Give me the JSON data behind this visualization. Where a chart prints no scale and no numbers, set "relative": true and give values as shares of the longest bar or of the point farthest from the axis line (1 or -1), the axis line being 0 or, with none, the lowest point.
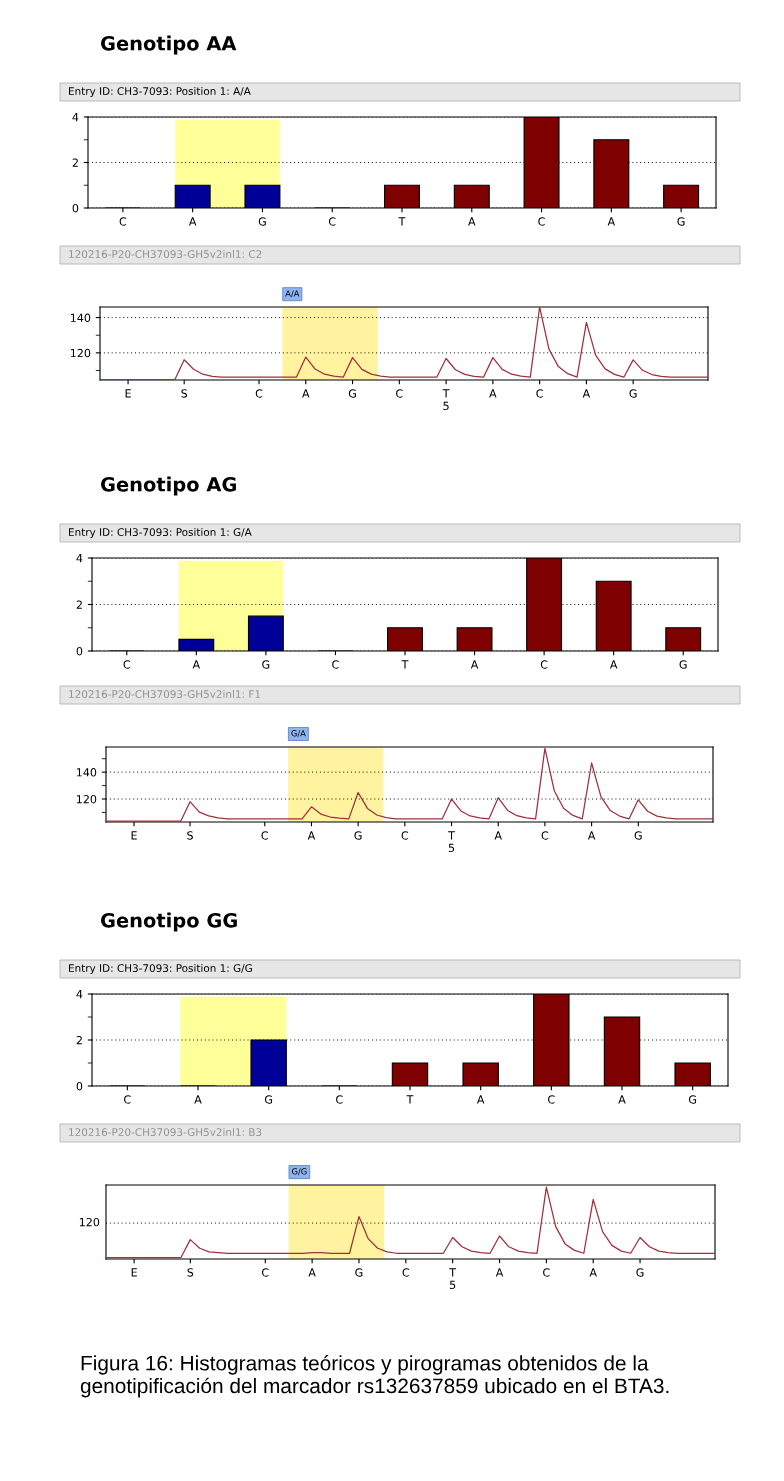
{
  "chart_data": [
    {
      "type": "bar",
      "title": "Genotipo AA",
      "subtitle": "Entry ID: CH3-7093: Position 1: A/A",
      "categories": [
        "C",
        "A",
        "G",
        "C",
        "T",
        "A",
        "C",
        "A",
        "G"
      ],
      "values": [
        0,
        1,
        1,
        0,
        1,
        1,
        4,
        3,
        1
      ],
      "colors": [
        "#7f0000",
        "#000099",
        "#000099",
        "#7f0000",
        "#7f0000",
        "#7f0000",
        "#7f0000",
        "#7f0000",
        "#7f0000"
      ],
      "ylim": [
        0,
        4
      ],
      "yticks": [
        0,
        {
          "value": 1,
          "label": null
        },
        2,
        {
          "value": 3,
          "label": null
        },
        4
      ],
      "grid": "y"
    },
    {
      "type": "line",
      "title": "120216-P20-CH37093-GH5v2inl1: C2",
      "color": "#a0303a",
      "ylim": [
        104.6,
        146
      ],
      "yticks": [
        {
          "value": 110,
          "label": null
        },
        120,
        {
          "value": 130,
          "label": null
        },
        140
      ],
      "grid": "y",
      "annotations": [
        "A/A"
      ],
      "categories": [
        null,
        null,
        null,
        "E",
        null,
        null,
        null,
        null,
        null,
        "S",
        null,
        null,
        null,
        null,
        null,
        null,
        null,
        "C",
        null,
        null,
        null,
        null,
        "A",
        null,
        null,
        null,
        null,
        "G",
        null,
        null,
        null,
        null,
        "C",
        null,
        null,
        null,
        null,
        "T\n5",
        null,
        null,
        null,
        null,
        "A",
        null,
        null,
        null,
        null,
        "C",
        null,
        null,
        null,
        null,
        "A",
        null,
        null,
        null,
        null,
        "G",
        null,
        null,
        null,
        null,
        null,
        null,
        null,
        null
      ],
      "values": [
        104.8,
        104.8,
        104.8,
        104.8,
        104.8,
        104.8,
        104.8,
        104.8,
        104.8,
        116.1,
        110.7,
        107.9,
        106.7,
        106.2,
        106.2,
        106.2,
        106.2,
        106.2,
        106.2,
        106.2,
        106.2,
        106.2,
        117.6,
        110.8,
        107.9,
        106.8,
        106.2,
        117.3,
        110.6,
        107.9,
        106.8,
        106.2,
        106.2,
        106.2,
        106.2,
        106.2,
        106.2,
        116.8,
        110.4,
        107.8,
        106.7,
        106.2,
        117.3,
        110.6,
        107.9,
        106.8,
        106.2,
        146,
        122.1,
        112.2,
        108.2,
        106.2,
        137.3,
        118.6,
        110.9,
        107.8,
        106.2,
        116,
        110.1,
        107.7,
        106.7,
        106.2,
        106.2,
        106.2,
        106.2,
        106.2
      ]
    },
    {
      "type": "bar",
      "title": "Genotipo AG",
      "subtitle": "Entry ID: CH3-7093: Position 1: G/A",
      "categories": [
        "C",
        "A",
        "G",
        "C",
        "T",
        "A",
        "C",
        "A",
        "G"
      ],
      "values": [
        0,
        0.5,
        1.5,
        0,
        1,
        1,
        4,
        3,
        1
      ],
      "colors": [
        "#7f0000",
        "#000099",
        "#000099",
        "#7f0000",
        "#7f0000",
        "#7f0000",
        "#7f0000",
        "#7f0000",
        "#7f0000"
      ],
      "ylim": [
        0,
        4
      ],
      "yticks": [
        0,
        {
          "value": 1,
          "label": null
        },
        2,
        {
          "value": 3,
          "label": null
        },
        4
      ],
      "grid": "y"
    },
    {
      "type": "line",
      "title": "120216-P20-CH37093-GH5v2inl1: F1",
      "color": "#a0303a",
      "ylim": [
        102.9,
        158.7
      ],
      "yticks": [
        {
          "value": 110,
          "label": null
        },
        120,
        {
          "value": 130,
          "label": null
        },
        140,
        {
          "value": 150,
          "label": null
        }
      ],
      "grid": "y",
      "annotations": [
        "G/A"
      ],
      "categories": [
        null,
        null,
        null,
        "E",
        null,
        null,
        null,
        null,
        null,
        "S",
        null,
        null,
        null,
        null,
        null,
        null,
        null,
        "C",
        null,
        null,
        null,
        null,
        "A",
        null,
        null,
        null,
        null,
        "G",
        null,
        null,
        null,
        null,
        "C",
        null,
        null,
        null,
        null,
        "T\n5",
        null,
        null,
        null,
        null,
        "A",
        null,
        null,
        null,
        null,
        "C",
        null,
        null,
        null,
        null,
        "A",
        null,
        null,
        null,
        null,
        "G",
        null,
        null,
        null,
        null,
        null,
        null,
        null,
        null
      ],
      "values": [
        103.5,
        103.5,
        103.5,
        103.5,
        103.5,
        103.5,
        103.5,
        103.5,
        103.5,
        118,
        110.2,
        107.4,
        105.9,
        105.2,
        105.2,
        105.2,
        105.2,
        105.2,
        105.2,
        105.2,
        105.2,
        105.2,
        114.2,
        108.8,
        106.6,
        105.7,
        105.2,
        124.8,
        113,
        108.1,
        106.2,
        105.2,
        105.2,
        105.2,
        105.2,
        105.2,
        105.2,
        120,
        111.1,
        107.4,
        105.9,
        105.2,
        121,
        111.5,
        107.6,
        106,
        105.2,
        157.7,
        126.2,
        113.1,
        107.8,
        105.2,
        146.8,
        121.8,
        111.4,
        107.3,
        105.2,
        119.4,
        110.9,
        107.3,
        105.9,
        105.2,
        105.2,
        105.2,
        105.2,
        105.2
      ]
    },
    {
      "type": "bar",
      "title": "Genotipo GG",
      "subtitle": "Entry ID: CH3-7093: Position 1: G/G",
      "categories": [
        "C",
        "A",
        "G",
        "C",
        "T",
        "A",
        "C",
        "A",
        "G"
      ],
      "values": [
        0,
        0,
        2,
        0,
        1,
        1,
        4,
        3,
        1
      ],
      "colors": [
        "#7f0000",
        "#000099",
        "#000099",
        "#7f0000",
        "#7f0000",
        "#7f0000",
        "#7f0000",
        "#7f0000",
        "#7f0000"
      ],
      "ylim": [
        0,
        4
      ],
      "yticks": [
        0,
        {
          "value": 1,
          "label": null
        },
        2,
        {
          "value": 3,
          "label": null
        },
        4
      ],
      "grid": "y"
    },
    {
      "type": "line",
      "title": "120216-P20-CH37093-GH5v2inl1: B3",
      "color": "#a0303a",
      "relative": true,
      "annotations": [
        "G/G",
        "120",
        "Figura 16: Histogramas teóricos y pirogramas obtenidos de la genotipificación del marcador rs132637859 ubicado en el BTA3."
      ],
      "ref_lines": [
        {
          "axis": "y",
          "value": 0.5,
          "line_style": "dotted"
        }
      ],
      "categories": [
        null,
        null,
        null,
        "E",
        null,
        null,
        null,
        null,
        null,
        "S",
        null,
        null,
        null,
        null,
        null,
        null,
        null,
        "C",
        null,
        null,
        null,
        null,
        "A",
        null,
        null,
        null,
        null,
        "G",
        null,
        null,
        null,
        null,
        "C",
        null,
        null,
        null,
        null,
        "T\n5",
        null,
        null,
        null,
        null,
        "A",
        null,
        null,
        null,
        null,
        "C",
        null,
        null,
        null,
        null,
        "A",
        null,
        null,
        null,
        null,
        "G",
        null,
        null,
        null,
        null,
        null,
        null,
        null,
        null
      ],
      "values": [
        0.02,
        0.02,
        0.02,
        0.02,
        0.02,
        0.02,
        0.02,
        0.02,
        0.02,
        0.27,
        0.15,
        0.1,
        0.09,
        0.08,
        0.08,
        0.08,
        0.08,
        0.08,
        0.08,
        0.08,
        0.08,
        0.08,
        0.09,
        0.09,
        0.08,
        0.08,
        0.08,
        0.59,
        0.28,
        0.15,
        0.1,
        0.08,
        0.08,
        0.08,
        0.08,
        0.08,
        0.08,
        0.3,
        0.17,
        0.11,
        0.09,
        0.08,
        0.32,
        0.17,
        0.11,
        0.09,
        0.08,
        1,
        0.45,
        0.21,
        0.12,
        0.08,
        0.83,
        0.38,
        0.19,
        0.11,
        0.08,
        0.3,
        0.17,
        0.11,
        0.09,
        0.08,
        0.08,
        0.08,
        0.08,
        0.08
      ]
    }
  ]
}
